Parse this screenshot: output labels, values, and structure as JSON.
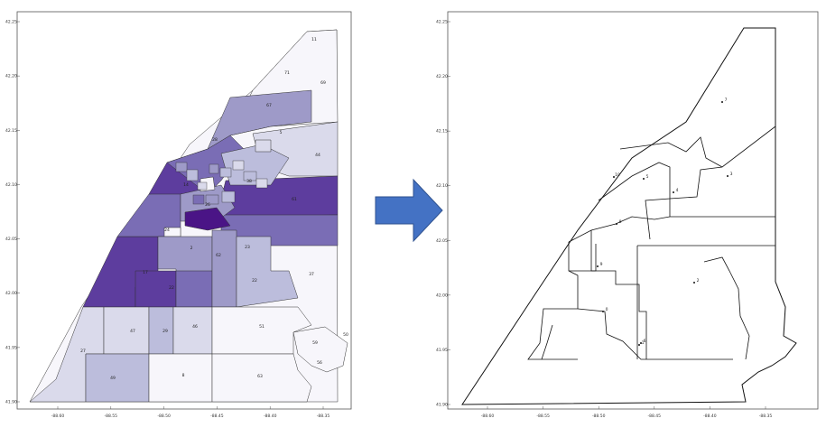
{
  "left_map": {
    "x_ticks": [
      "-88.60",
      "-88.55",
      "-88.50",
      "-88.45",
      "-88.40",
      "-88.35"
    ],
    "y_ticks": [
      "42.25",
      "42.20",
      "42.15",
      "42.10",
      "42.05",
      "42.00",
      "41.95",
      "41.90"
    ],
    "region_labels": [
      {
        "text": "11",
        "shade": 0
      },
      {
        "text": "71",
        "shade": 0
      },
      {
        "text": "69",
        "shade": 0
      },
      {
        "text": "67",
        "shade": 3
      },
      {
        "text": "5",
        "shade": 1
      },
      {
        "text": "44",
        "shade": 1
      },
      {
        "text": "27",
        "shade": 1
      },
      {
        "text": "47",
        "shade": 1
      },
      {
        "text": "29",
        "shade": 2
      },
      {
        "text": "46",
        "shade": 1
      },
      {
        "text": "51",
        "shade": 0
      },
      {
        "text": "59",
        "shade": 0
      },
      {
        "text": "56",
        "shade": 0
      },
      {
        "text": "50",
        "shade": 0
      },
      {
        "text": "49",
        "shade": 1
      },
      {
        "text": "8",
        "shade": 0
      },
      {
        "text": "63",
        "shade": 0
      },
      {
        "text": "23",
        "shade": 1
      },
      {
        "text": "22",
        "shade": 1
      },
      {
        "text": "37",
        "shade": 0
      },
      {
        "text": "28",
        "shade": 3
      },
      {
        "text": "14",
        "shade": 4
      },
      {
        "text": "2",
        "shade": 3
      },
      {
        "text": "38",
        "shade": 2
      },
      {
        "text": "26",
        "shade": 4
      },
      {
        "text": "24",
        "shade": 0
      },
      {
        "text": "17",
        "shade": 3
      },
      {
        "text": "22",
        "shade": 3
      },
      {
        "text": "62",
        "shade": 3
      },
      {
        "text": "61",
        "shade": 5
      }
    ]
  },
  "right_map": {
    "x_ticks": [
      "-88.60",
      "-88.55",
      "-88.50",
      "-88.45",
      "-88.40",
      "-88.35"
    ],
    "y_ticks": [
      "42.25",
      "42.20",
      "42.15",
      "42.10",
      "42.05",
      "42.00",
      "41.95",
      "41.90"
    ],
    "point_labels": [
      "7",
      "3",
      "2",
      "4",
      "5",
      "8",
      "9",
      "10",
      "0",
      "1",
      "6"
    ]
  },
  "colors": {
    "arrow": "#4472c4",
    "purples": [
      "#f7f6fb",
      "#dadaeb",
      "#bcbddc",
      "#9e9ac8",
      "#7a6db5",
      "#5d3d9e",
      "#4a1486"
    ]
  }
}
